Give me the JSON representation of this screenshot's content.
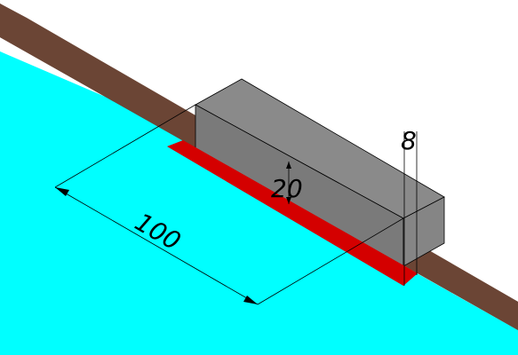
{
  "diagram": {
    "type": "isometric-cad-dimensioning",
    "colors": {
      "background": "#ffffff",
      "water": "#00ffff",
      "wall": "#6b4535",
      "block_front": "#7a7a7a",
      "block_top": "#8a8a8a",
      "block_side": "#808080",
      "red_strip": "#d40000",
      "lines": "#000000"
    },
    "dimensions": {
      "length_label": "100",
      "height_label": "20",
      "depth_label": "8"
    }
  }
}
